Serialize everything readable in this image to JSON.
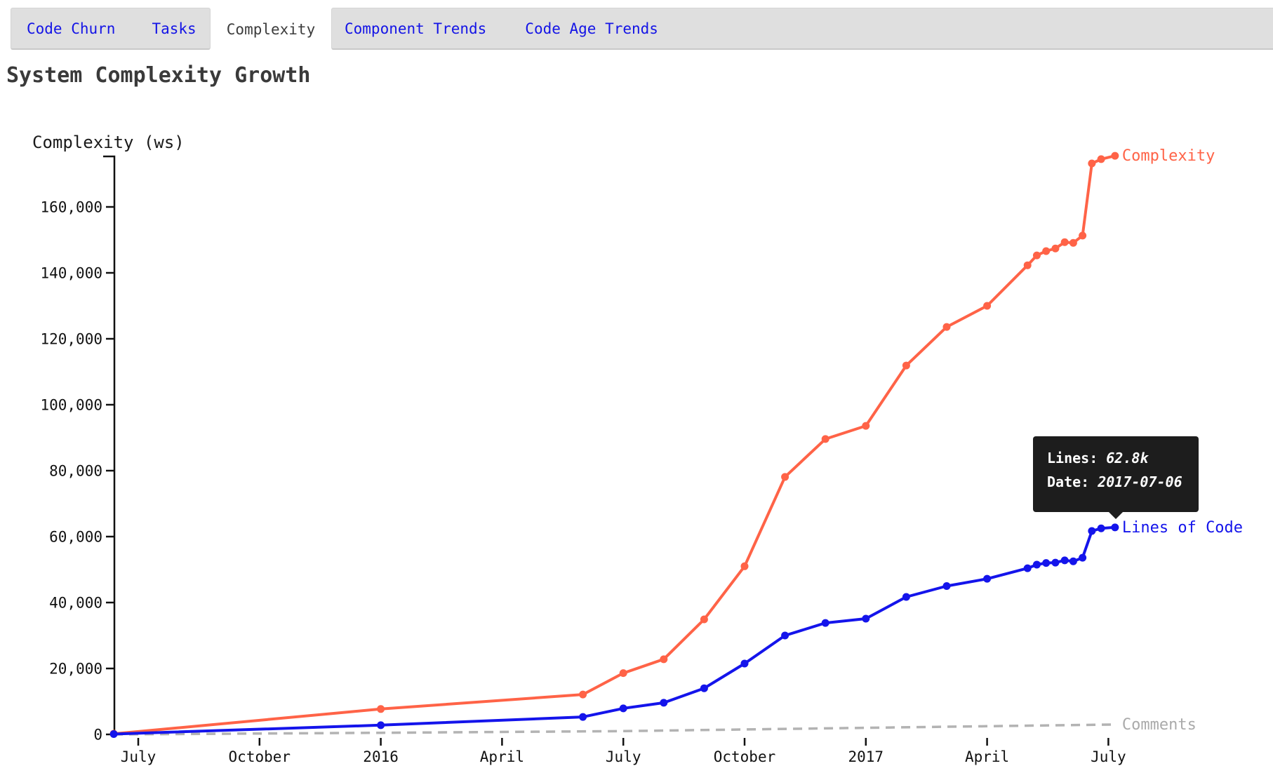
{
  "tabs": {
    "items": [
      {
        "label": "Code Churn",
        "active": false
      },
      {
        "label": "Tasks",
        "active": false
      },
      {
        "label": "Complexity",
        "active": true
      },
      {
        "label": "Component Trends",
        "active": false
      },
      {
        "label": "Code Age Trends",
        "active": false
      }
    ]
  },
  "page_title": "System Complexity Growth",
  "tooltip": {
    "lines_label": "Lines:",
    "lines_value": "62.8k",
    "date_label": "Date:",
    "date_value": "2017-07-06"
  },
  "colors": {
    "link_blue": "#1414e6",
    "active_tab_text": "#3c3c3c",
    "tab_bar_bg": "#dfdfdf",
    "axis_text": "#111111",
    "tooltip_bg": "#1d1d1d",
    "complexity_orange": "#ff6347",
    "lines_blue": "#1414eb",
    "comments_gray": "#b3b3b3"
  },
  "chart_data": {
    "type": "line",
    "title": "System Complexity Growth",
    "y_axis_title": "Complexity (ws)",
    "xlabel": "",
    "ylabel": "Complexity (ws)",
    "ylim": [
      0,
      176000
    ],
    "x_range": [
      "2015-06-13",
      "2017-07-06"
    ],
    "grid": false,
    "legend_position": "line-end-labels",
    "y_ticks": [
      {
        "value": 0,
        "label": "0"
      },
      {
        "value": 20000,
        "label": "20,000"
      },
      {
        "value": 40000,
        "label": "40,000"
      },
      {
        "value": 60000,
        "label": "60,000"
      },
      {
        "value": 80000,
        "label": "80,000"
      },
      {
        "value": 100000,
        "label": "100,000"
      },
      {
        "value": 120000,
        "label": "120,000"
      },
      {
        "value": 140000,
        "label": "140,000"
      },
      {
        "value": 160000,
        "label": "160,000"
      }
    ],
    "x_ticks": [
      {
        "date": "2015-07-01",
        "label": "July"
      },
      {
        "date": "2015-10-01",
        "label": "October"
      },
      {
        "date": "2016-01-01",
        "label": "2016"
      },
      {
        "date": "2016-04-01",
        "label": "April"
      },
      {
        "date": "2016-07-01",
        "label": "July"
      },
      {
        "date": "2016-10-01",
        "label": "October"
      },
      {
        "date": "2017-01-01",
        "label": "2017"
      },
      {
        "date": "2017-04-01",
        "label": "April"
      },
      {
        "date": "2017-07-01",
        "label": "July"
      }
    ],
    "series": [
      {
        "name": "Comments",
        "color": "#b3b3b3",
        "label_color": "#aaaaaa",
        "style": "dashed",
        "show_points": false,
        "points": [
          [
            "2015-06-13",
            0
          ],
          [
            "2016-01-01",
            500
          ],
          [
            "2016-07-01",
            1000
          ],
          [
            "2017-01-01",
            2000
          ],
          [
            "2017-07-06",
            3000
          ]
        ]
      },
      {
        "name": "Complexity",
        "color": "#ff6347",
        "label_color": "#ff6347",
        "style": "solid",
        "show_points": true,
        "points": [
          [
            "2015-06-13",
            200
          ],
          [
            "2016-01-01",
            7700
          ],
          [
            "2016-06-01",
            12100
          ],
          [
            "2016-07-01",
            18600
          ],
          [
            "2016-08-01",
            22800
          ],
          [
            "2016-09-01",
            34900
          ],
          [
            "2016-10-01",
            51000
          ],
          [
            "2016-11-01",
            78100
          ],
          [
            "2016-12-01",
            89600
          ],
          [
            "2017-01-01",
            93600
          ],
          [
            "2017-02-01",
            111900
          ],
          [
            "2017-03-01",
            123600
          ],
          [
            "2017-04-01",
            130000
          ],
          [
            "2017-05-01",
            142300
          ],
          [
            "2017-05-08",
            145300
          ],
          [
            "2017-05-15",
            146600
          ],
          [
            "2017-05-22",
            147400
          ],
          [
            "2017-05-29",
            149300
          ],
          [
            "2017-06-05",
            149100
          ],
          [
            "2017-06-12",
            151300
          ],
          [
            "2017-06-19",
            173200
          ],
          [
            "2017-06-26",
            174500
          ],
          [
            "2017-07-06",
            175500
          ]
        ]
      },
      {
        "name": "Lines of Code",
        "color": "#1414eb",
        "label_color": "#1414eb",
        "style": "solid",
        "show_points": true,
        "points": [
          [
            "2015-06-13",
            100
          ],
          [
            "2016-01-01",
            2800
          ],
          [
            "2016-06-01",
            5300
          ],
          [
            "2016-07-01",
            7900
          ],
          [
            "2016-08-01",
            9600
          ],
          [
            "2016-09-01",
            14000
          ],
          [
            "2016-10-01",
            21500
          ],
          [
            "2016-11-01",
            30000
          ],
          [
            "2016-12-01",
            33800
          ],
          [
            "2017-01-01",
            35100
          ],
          [
            "2017-02-01",
            41700
          ],
          [
            "2017-03-01",
            45000
          ],
          [
            "2017-04-01",
            47200
          ],
          [
            "2017-05-01",
            50400
          ],
          [
            "2017-05-08",
            51500
          ],
          [
            "2017-05-15",
            52000
          ],
          [
            "2017-05-22",
            52100
          ],
          [
            "2017-05-29",
            52800
          ],
          [
            "2017-06-05",
            52500
          ],
          [
            "2017-06-12",
            53600
          ],
          [
            "2017-06-19",
            61700
          ],
          [
            "2017-06-26",
            62500
          ],
          [
            "2017-07-06",
            62800
          ]
        ]
      }
    ]
  }
}
